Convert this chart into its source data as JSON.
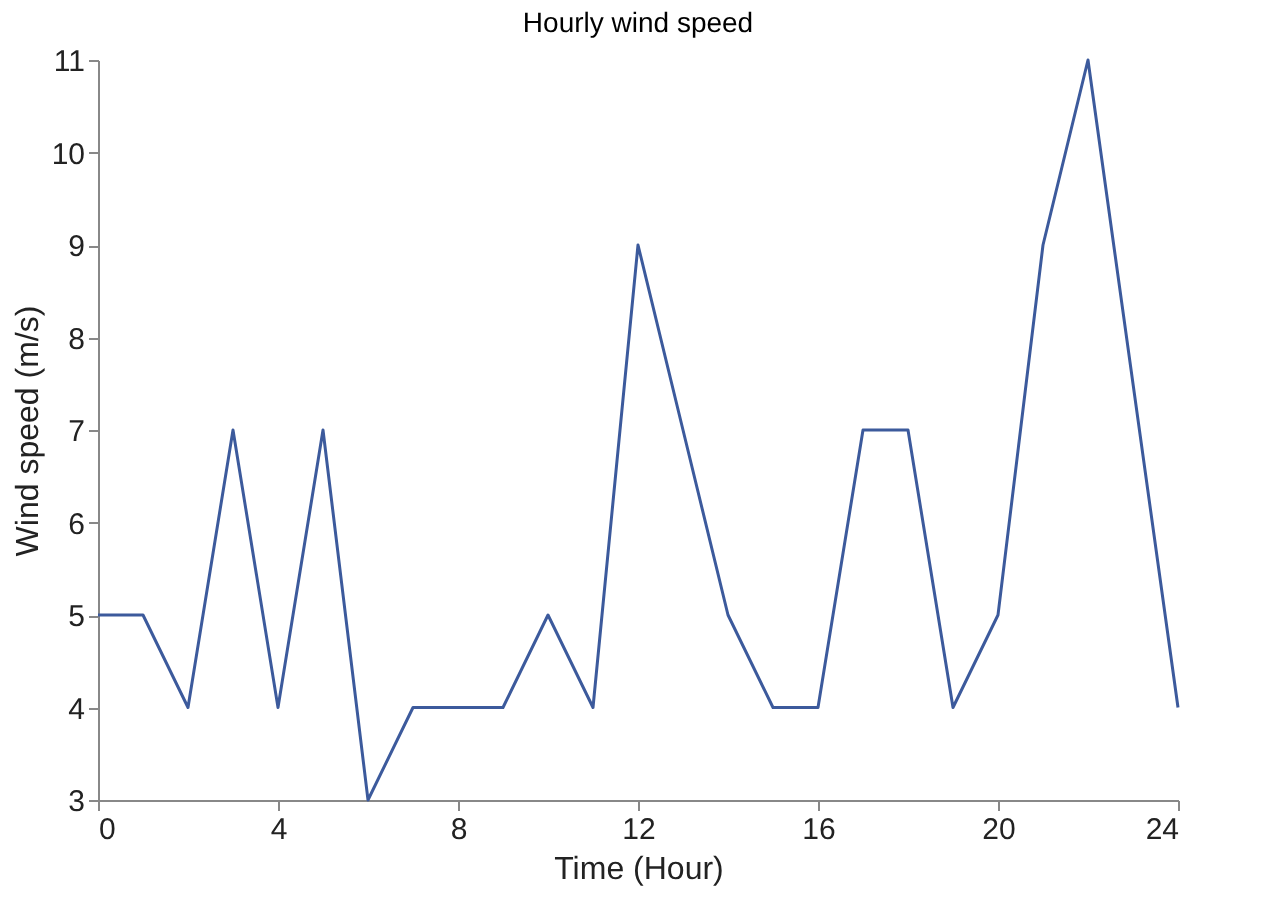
{
  "chart_data": {
    "type": "line",
    "title": "Hourly wind speed",
    "xlabel": "Time (Hour)",
    "ylabel": "Wind speed (m/s)",
    "x": [
      0,
      1,
      2,
      3,
      4,
      5,
      6,
      7,
      8,
      9,
      10,
      11,
      12,
      13,
      14,
      15,
      16,
      17,
      18,
      19,
      20,
      21,
      22,
      24
    ],
    "series": [
      {
        "color": "#3c5a9c",
        "values": [
          5,
          5,
          4,
          7,
          4,
          7,
          3,
          4,
          4,
          4,
          5,
          4,
          9,
          7,
          5,
          4,
          4,
          7,
          7,
          4,
          5,
          9,
          11,
          4
        ]
      }
    ],
    "xlim": [
      0,
      24
    ],
    "xticks": [
      0,
      4,
      8,
      12,
      16,
      20,
      24
    ],
    "ylim": [
      3,
      11
    ],
    "yticks": [
      3,
      4,
      5,
      6,
      7,
      8,
      9,
      10,
      11
    ],
    "grid": false,
    "legend": false,
    "marker": "none",
    "line_style": "solid"
  }
}
